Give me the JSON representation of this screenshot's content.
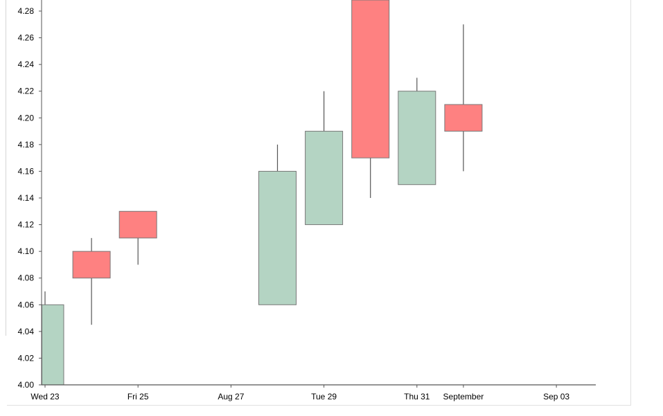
{
  "chart_data": {
    "type": "candlestick",
    "title": "",
    "xlabel": "",
    "ylabel": "",
    "ylim": [
      4.0,
      4.28
    ],
    "y_ticks": [
      "4.00",
      "4.02",
      "4.04",
      "4.06",
      "4.08",
      "4.10",
      "4.12",
      "4.14",
      "4.16",
      "4.18",
      "4.20",
      "4.22",
      "4.24",
      "4.26",
      "4.28"
    ],
    "x_ticks": [
      {
        "date": "2020-08-23",
        "label": "Wed 23"
      },
      {
        "date": "2020-08-25",
        "label": "Fri 25"
      },
      {
        "date": "2020-08-27",
        "label": "Aug 27"
      },
      {
        "date": "2020-08-29",
        "label": "Tue 29"
      },
      {
        "date": "2020-08-31",
        "label": "Thu 31"
      },
      {
        "date": "2020-09-01",
        "label": "September"
      },
      {
        "date": "2020-09-03",
        "label": "Sep 03"
      }
    ],
    "candles": [
      {
        "date": "2020-08-23",
        "open": 4.0,
        "high": 4.07,
        "low": 4.0,
        "close": 4.06
      },
      {
        "date": "2020-08-24",
        "open": 4.1,
        "high": 4.11,
        "low": 4.045,
        "close": 4.08
      },
      {
        "date": "2020-08-25",
        "open": 4.13,
        "high": 4.13,
        "low": 4.09,
        "close": 4.11
      },
      {
        "date": "2020-08-28",
        "open": 4.06,
        "high": 4.18,
        "low": 4.06,
        "close": 4.16
      },
      {
        "date": "2020-08-29",
        "open": 4.12,
        "high": 4.22,
        "low": 4.12,
        "close": 4.19
      },
      {
        "date": "2020-08-30",
        "open": 4.3,
        "high": 4.3,
        "low": 4.14,
        "close": 4.17
      },
      {
        "date": "2020-08-31",
        "open": 4.15,
        "high": 4.23,
        "low": 4.15,
        "close": 4.22
      },
      {
        "date": "2020-09-01",
        "open": 4.21,
        "high": 4.27,
        "low": 4.16,
        "close": 4.19
      }
    ],
    "colors": {
      "up": "#b4d4c3",
      "down": "#fe8181",
      "stroke": "#777777",
      "axis": "#555555"
    }
  }
}
